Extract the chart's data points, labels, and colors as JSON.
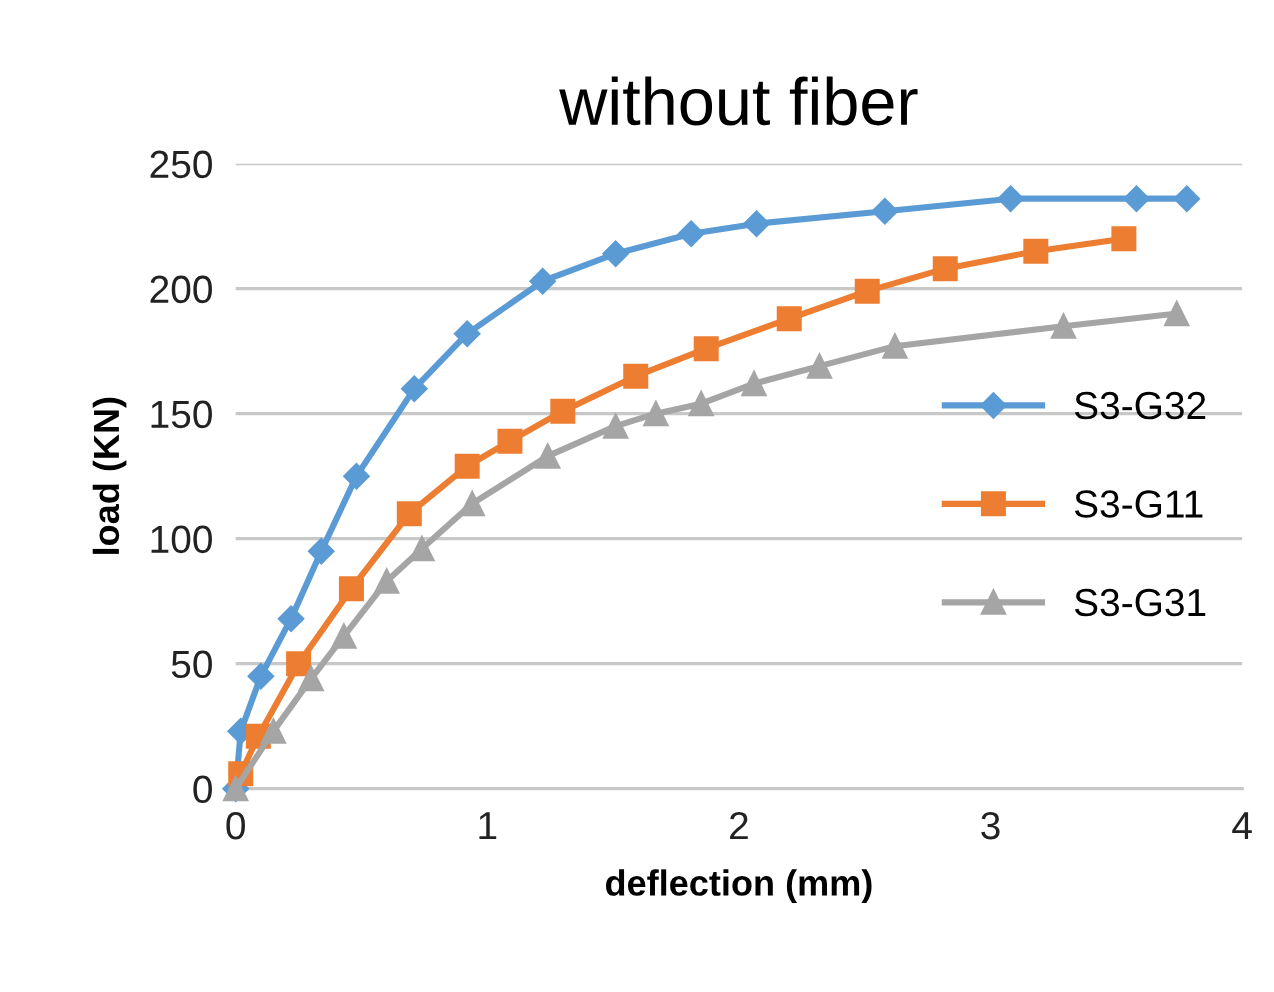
{
  "chart_data": {
    "type": "line",
    "title": "without fiber",
    "xlabel": "deflection (mm)",
    "ylabel": "load (KN)",
    "xlim": [
      0,
      4
    ],
    "xticks": [
      0,
      1,
      2,
      3,
      4
    ],
    "ylim": [
      0,
      250
    ],
    "yticks": [
      0,
      50,
      100,
      150,
      200,
      250
    ],
    "grid": "y",
    "legend": "right",
    "series": [
      {
        "name": "S3-G32",
        "color": "#5b9bd5",
        "marker": "diamond",
        "x": [
          0,
          0.02,
          0.1,
          0.22,
          0.34,
          0.48,
          0.71,
          0.92,
          1.22,
          1.51,
          1.81,
          2.07,
          2.58,
          3.08,
          3.58,
          3.78
        ],
        "values": [
          0,
          23,
          45,
          68,
          95,
          125,
          160,
          182,
          203,
          214,
          222,
          226,
          231,
          236,
          236,
          236
        ]
      },
      {
        "name": "S3-G11",
        "color": "#ed7d31",
        "marker": "square",
        "x": [
          0.02,
          0.09,
          0.25,
          0.46,
          0.69,
          0.92,
          1.09,
          1.3,
          1.59,
          1.87,
          2.2,
          2.51,
          2.82,
          3.18,
          3.53
        ],
        "values": [
          6,
          21,
          50,
          80,
          110,
          129,
          139,
          151,
          165,
          176,
          188,
          199,
          208,
          215,
          220
        ]
      },
      {
        "name": "S3-G31",
        "color": "#a5a5a5",
        "marker": "triangle",
        "x": [
          0,
          0.15,
          0.3,
          0.43,
          0.6,
          0.74,
          0.94,
          1.24,
          1.51,
          1.67,
          1.85,
          2.06,
          2.32,
          2.62,
          3.29,
          3.74
        ],
        "values": [
          0,
          23,
          44,
          61,
          83,
          96,
          114,
          133,
          145,
          150,
          154,
          162,
          169,
          177,
          185,
          190
        ]
      }
    ]
  }
}
